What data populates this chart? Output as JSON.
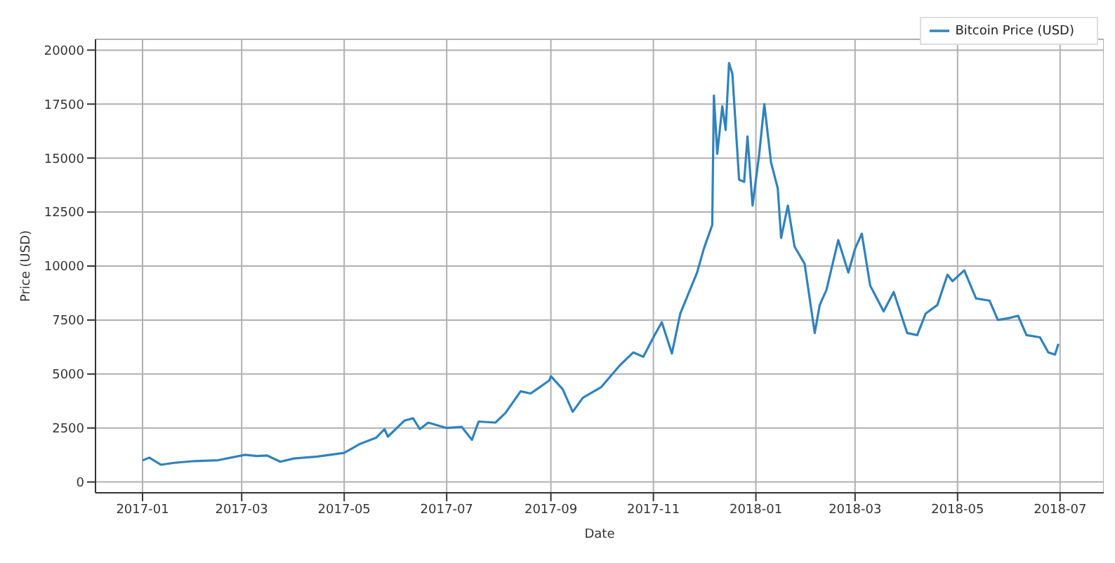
{
  "chart_data": {
    "type": "line",
    "xlabel": "Date",
    "ylabel": "Price (USD)",
    "x": [
      "2017-01-01",
      "2017-01-05",
      "2017-01-12",
      "2017-01-20",
      "2017-02-01",
      "2017-02-15",
      "2017-03-03",
      "2017-03-10",
      "2017-03-16",
      "2017-03-24",
      "2017-04-01",
      "2017-04-15",
      "2017-05-01",
      "2017-05-10",
      "2017-05-20",
      "2017-05-25",
      "2017-05-27",
      "2017-06-06",
      "2017-06-11",
      "2017-06-15",
      "2017-06-20",
      "2017-07-01",
      "2017-07-10",
      "2017-07-16",
      "2017-07-20",
      "2017-07-30",
      "2017-08-05",
      "2017-08-14",
      "2017-08-20",
      "2017-08-31",
      "2017-09-01",
      "2017-09-08",
      "2017-09-14",
      "2017-09-20",
      "2017-10-01",
      "2017-10-12",
      "2017-10-20",
      "2017-10-26",
      "2017-11-01",
      "2017-11-06",
      "2017-11-12",
      "2017-11-17",
      "2017-11-27",
      "2017-12-01",
      "2017-12-06",
      "2017-12-07",
      "2017-12-09",
      "2017-12-12",
      "2017-12-14",
      "2017-12-16",
      "2017-12-18",
      "2017-12-22",
      "2017-12-25",
      "2017-12-27",
      "2017-12-30",
      "2018-01-03",
      "2018-01-06",
      "2018-01-10",
      "2018-01-14",
      "2018-01-16",
      "2018-01-20",
      "2018-01-24",
      "2018-01-30",
      "2018-02-05",
      "2018-02-08",
      "2018-02-12",
      "2018-02-19",
      "2018-02-25",
      "2018-03-01",
      "2018-03-05",
      "2018-03-10",
      "2018-03-18",
      "2018-03-24",
      "2018-04-01",
      "2018-04-07",
      "2018-04-12",
      "2018-04-19",
      "2018-04-25",
      "2018-04-28",
      "2018-05-05",
      "2018-05-12",
      "2018-05-20",
      "2018-05-25",
      "2018-06-01",
      "2018-06-06",
      "2018-06-11",
      "2018-06-19",
      "2018-06-24",
      "2018-06-28",
      "2018-06-30"
    ],
    "series": [
      {
        "name": "Bitcoin Price (USD)",
        "color": "#3182bd",
        "values": [
          1000,
          1130,
          800,
          890,
          970,
          1010,
          1260,
          1200,
          1230,
          940,
          1090,
          1180,
          1350,
          1750,
          2050,
          2450,
          2100,
          2850,
          2950,
          2450,
          2750,
          2500,
          2550,
          1950,
          2800,
          2750,
          3200,
          4200,
          4100,
          4700,
          4900,
          4300,
          3250,
          3900,
          4400,
          5400,
          6000,
          5800,
          6700,
          7400,
          5950,
          7800,
          9700,
          10800,
          11900,
          17900,
          15200,
          17400,
          16300,
          19400,
          18900,
          14000,
          13900,
          16000,
          12800,
          15200,
          17500,
          14800,
          13600,
          11300,
          12800,
          10900,
          10100,
          6900,
          8200,
          8900,
          11200,
          9700,
          10800,
          11500,
          9100,
          7900,
          8800,
          6900,
          6800,
          7800,
          8200,
          9600,
          9300,
          9800,
          8500,
          8400,
          7500,
          7600,
          7700,
          6800,
          6700,
          6000,
          5900,
          6400
        ]
      }
    ],
    "xlim": [
      "2016-12-04",
      "2018-07-27"
    ],
    "xticks": [
      "2017-01",
      "2017-03",
      "2017-05",
      "2017-07",
      "2017-09",
      "2017-11",
      "2018-01",
      "2018-03",
      "2018-05",
      "2018-07"
    ],
    "ylim": [
      -500,
      20500
    ],
    "yticks": [
      0,
      2500,
      5000,
      7500,
      10000,
      12500,
      15000,
      17500,
      20000
    ],
    "grid": true,
    "legend": "top right"
  }
}
